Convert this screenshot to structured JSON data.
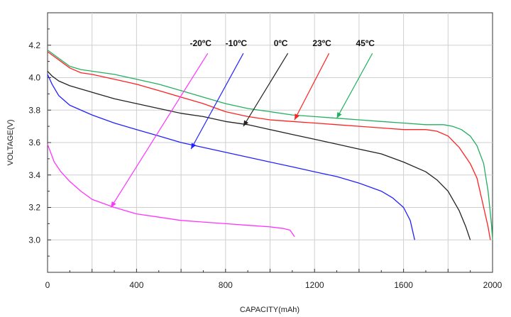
{
  "chart_data": {
    "type": "line",
    "title": "",
    "xlabel": "CAPACITY(mAh)",
    "ylabel": "VOLTAGE(V)",
    "xlim": [
      0,
      2000
    ],
    "ylim": [
      2.8,
      4.4
    ],
    "xticks": [
      0,
      400,
      800,
      1200,
      1600,
      2000
    ],
    "xtick_labels": [
      "0",
      "400",
      "800",
      "1200",
      "1600",
      "2000"
    ],
    "yticks": [
      3.0,
      3.2,
      3.4,
      3.6,
      3.8,
      4.0,
      4.2
    ],
    "ytick_labels": [
      "3.0",
      "3.2",
      "3.4",
      "3.6",
      "3.8",
      "4.0",
      "4.2"
    ],
    "grid": true,
    "series": [
      {
        "name": "-20ºC",
        "color": "#ff33ff",
        "points": [
          [
            0,
            3.59
          ],
          [
            30,
            3.48
          ],
          [
            60,
            3.42
          ],
          [
            100,
            3.36
          ],
          [
            150,
            3.3
          ],
          [
            200,
            3.25
          ],
          [
            300,
            3.2
          ],
          [
            400,
            3.16
          ],
          [
            500,
            3.14
          ],
          [
            600,
            3.12
          ],
          [
            700,
            3.11
          ],
          [
            800,
            3.1
          ],
          [
            900,
            3.09
          ],
          [
            1000,
            3.08
          ],
          [
            1060,
            3.07
          ],
          [
            1090,
            3.06
          ],
          [
            1110,
            3.02
          ]
        ],
        "arrow_to": [
          285,
          3.2
        ],
        "label_x": 720
      },
      {
        "name": "-10ºC",
        "color": "#2222ff",
        "points": [
          [
            0,
            4.02
          ],
          [
            20,
            3.96
          ],
          [
            50,
            3.89
          ],
          [
            100,
            3.83
          ],
          [
            200,
            3.77
          ],
          [
            300,
            3.72
          ],
          [
            400,
            3.68
          ],
          [
            500,
            3.64
          ],
          [
            600,
            3.6
          ],
          [
            700,
            3.57
          ],
          [
            800,
            3.54
          ],
          [
            900,
            3.51
          ],
          [
            1000,
            3.48
          ],
          [
            1100,
            3.45
          ],
          [
            1200,
            3.42
          ],
          [
            1300,
            3.39
          ],
          [
            1400,
            3.35
          ],
          [
            1500,
            3.3
          ],
          [
            1550,
            3.26
          ],
          [
            1600,
            3.2
          ],
          [
            1630,
            3.12
          ],
          [
            1650,
            3.0
          ]
        ],
        "arrow_to": [
          645,
          3.56
        ],
        "label_x": 880
      },
      {
        "name": "0ºC",
        "color": "#222222",
        "points": [
          [
            0,
            4.04
          ],
          [
            20,
            4.01
          ],
          [
            50,
            3.98
          ],
          [
            100,
            3.95
          ],
          [
            200,
            3.91
          ],
          [
            300,
            3.87
          ],
          [
            400,
            3.84
          ],
          [
            500,
            3.81
          ],
          [
            600,
            3.78
          ],
          [
            700,
            3.76
          ],
          [
            800,
            3.73
          ],
          [
            900,
            3.71
          ],
          [
            1000,
            3.68
          ],
          [
            1100,
            3.65
          ],
          [
            1200,
            3.62
          ],
          [
            1300,
            3.59
          ],
          [
            1400,
            3.56
          ],
          [
            1500,
            3.53
          ],
          [
            1600,
            3.48
          ],
          [
            1700,
            3.42
          ],
          [
            1750,
            3.37
          ],
          [
            1800,
            3.3
          ],
          [
            1850,
            3.18
          ],
          [
            1880,
            3.08
          ],
          [
            1900,
            3.0
          ]
        ],
        "arrow_to": [
          880,
          3.7
        ],
        "label_x": 1080
      },
      {
        "name": "23ºC",
        "color": "#ff2222",
        "points": [
          [
            0,
            4.16
          ],
          [
            50,
            4.11
          ],
          [
            100,
            4.06
          ],
          [
            150,
            4.03
          ],
          [
            200,
            4.02
          ],
          [
            300,
            3.99
          ],
          [
            400,
            3.96
          ],
          [
            500,
            3.92
          ],
          [
            600,
            3.88
          ],
          [
            700,
            3.84
          ],
          [
            800,
            3.79
          ],
          [
            900,
            3.76
          ],
          [
            1000,
            3.74
          ],
          [
            1100,
            3.73
          ],
          [
            1200,
            3.72
          ],
          [
            1300,
            3.71
          ],
          [
            1400,
            3.7
          ],
          [
            1500,
            3.69
          ],
          [
            1600,
            3.68
          ],
          [
            1700,
            3.68
          ],
          [
            1750,
            3.67
          ],
          [
            1800,
            3.64
          ],
          [
            1850,
            3.57
          ],
          [
            1900,
            3.47
          ],
          [
            1930,
            3.38
          ],
          [
            1960,
            3.2
          ],
          [
            1980,
            3.08
          ],
          [
            1990,
            3.0
          ]
        ],
        "arrow_to": [
          1110,
          3.74
        ],
        "label_x": 1265
      },
      {
        "name": "45ºC",
        "color": "#22b060",
        "points": [
          [
            0,
            4.17
          ],
          [
            50,
            4.12
          ],
          [
            100,
            4.07
          ],
          [
            150,
            4.05
          ],
          [
            200,
            4.04
          ],
          [
            300,
            4.02
          ],
          [
            400,
            3.99
          ],
          [
            500,
            3.96
          ],
          [
            600,
            3.92
          ],
          [
            700,
            3.88
          ],
          [
            800,
            3.84
          ],
          [
            900,
            3.81
          ],
          [
            1000,
            3.79
          ],
          [
            1100,
            3.77
          ],
          [
            1200,
            3.76
          ],
          [
            1300,
            3.75
          ],
          [
            1400,
            3.74
          ],
          [
            1500,
            3.73
          ],
          [
            1600,
            3.72
          ],
          [
            1700,
            3.71
          ],
          [
            1780,
            3.71
          ],
          [
            1820,
            3.7
          ],
          [
            1860,
            3.68
          ],
          [
            1900,
            3.64
          ],
          [
            1930,
            3.58
          ],
          [
            1960,
            3.47
          ],
          [
            1980,
            3.3
          ],
          [
            1995,
            3.1
          ],
          [
            2000,
            3.0
          ]
        ],
        "arrow_to": [
          1300,
          3.75
        ],
        "label_x": 1460
      }
    ],
    "legend_y": 4.15,
    "legend_placement": "top, labels with arrows pointing to curves"
  }
}
